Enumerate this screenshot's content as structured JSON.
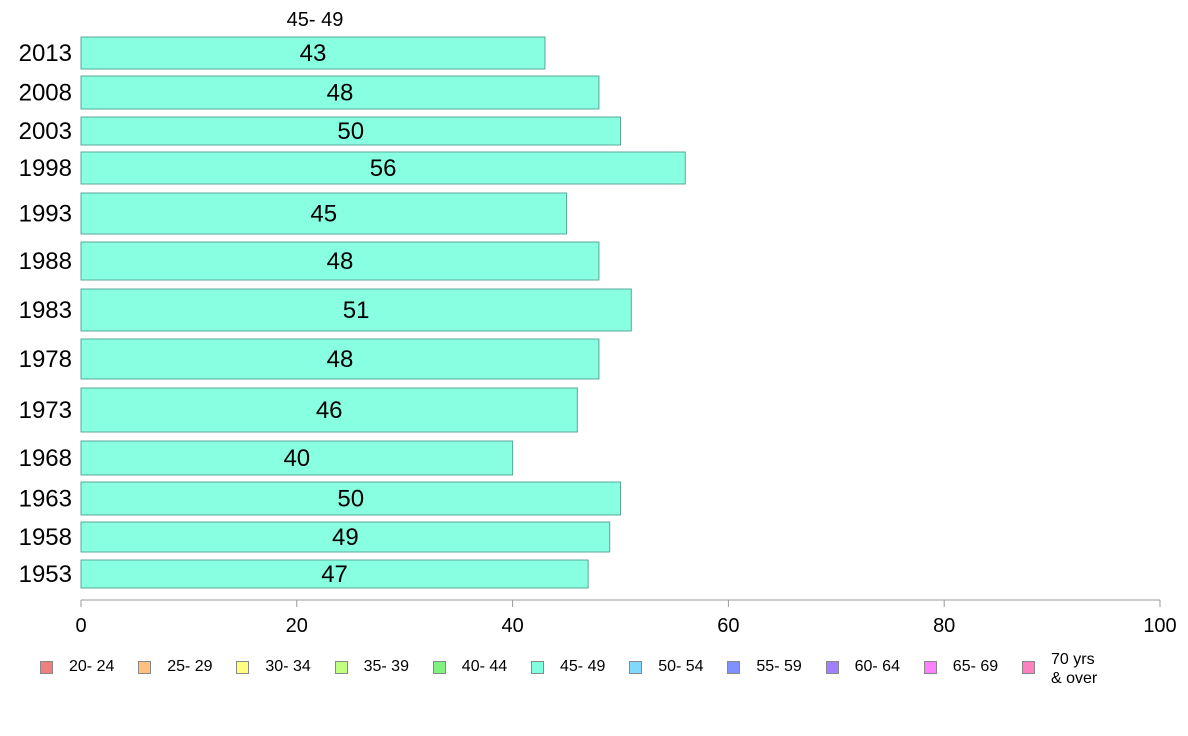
{
  "chart_data": {
    "type": "bar",
    "orientation": "horizontal",
    "series_label": "45- 49",
    "categories": [
      "2013",
      "2008",
      "2003",
      "1998",
      "1993",
      "1988",
      "1983",
      "1978",
      "1973",
      "1968",
      "1963",
      "1958",
      "1953"
    ],
    "series": [
      {
        "name": "45- 49",
        "values": [
          43,
          48,
          50,
          56,
          45,
          48,
          51,
          48,
          46,
          40,
          50,
          49,
          47
        ]
      }
    ],
    "xlim": [
      0,
      100
    ],
    "xticks": [
      "0",
      "20",
      "40",
      "60",
      "80",
      "100"
    ],
    "grid": false,
    "legend": {
      "placement": "bottom",
      "items": [
        {
          "label": "20- 24",
          "color": "#f08080"
        },
        {
          "label": "25- 29",
          "color": "#ffc080"
        },
        {
          "label": "30- 34",
          "color": "#ffff80"
        },
        {
          "label": "35- 39",
          "color": "#c0ff80"
        },
        {
          "label": "40- 44",
          "color": "#80f080"
        },
        {
          "label": "45- 49",
          "color": "#80ffe0"
        },
        {
          "label": "50- 54",
          "color": "#80d8ff"
        },
        {
          "label": "55- 59",
          "color": "#8090ff"
        },
        {
          "label": "60- 64",
          "color": "#a080ff"
        },
        {
          "label": "65- 69",
          "color": "#ff80ff"
        },
        {
          "label": "70 yrs\n& over",
          "color": "#ff80c0"
        }
      ]
    },
    "bar_color": "#88ffe0"
  }
}
